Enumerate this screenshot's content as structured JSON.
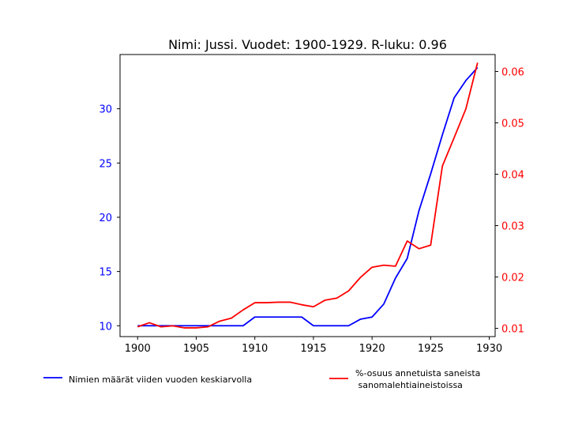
{
  "chart_data": {
    "type": "line",
    "title": "Nimi: Jussi. Vuodet: 1900-1929. R-luku: 0.96",
    "xlabel": "",
    "ylabel": "",
    "x": [
      1900,
      1901,
      1902,
      1903,
      1904,
      1905,
      1906,
      1907,
      1908,
      1909,
      1910,
      1911,
      1912,
      1913,
      1914,
      1915,
      1916,
      1917,
      1918,
      1919,
      1920,
      1921,
      1922,
      1923,
      1924,
      1925,
      1926,
      1927,
      1928,
      1929
    ],
    "xlim": [
      1898.5,
      1930.5
    ],
    "xticks": [
      "1900",
      "1905",
      "1910",
      "1915",
      "1920",
      "1925",
      "1930"
    ],
    "series": [
      {
        "name": "Nimien määrät viiden vuoden keskiarvolla",
        "axis": "left",
        "color": "#0000ff",
        "values": [
          10,
          10,
          10,
          10,
          10,
          10,
          10,
          10,
          10,
          10,
          10.8,
          10.8,
          10.8,
          10.8,
          10.8,
          10,
          10,
          10,
          10,
          10.6,
          10.8,
          12,
          14.4,
          16.2,
          20.6,
          24,
          27.6,
          31,
          32.6,
          33.8
        ]
      },
      {
        "name": "%-osuus annetuista saneista\n sanomalehtiaineistoissa",
        "axis": "right",
        "color": "#ff0000",
        "values": [
          0.0103,
          0.0111,
          0.0103,
          0.0105,
          0.0101,
          0.0101,
          0.0103,
          0.0114,
          0.012,
          0.0136,
          0.015,
          0.015,
          0.0151,
          0.0151,
          0.0146,
          0.0142,
          0.0155,
          0.0159,
          0.0173,
          0.0199,
          0.0219,
          0.0223,
          0.0221,
          0.027,
          0.0255,
          0.0262,
          0.0416,
          0.0471,
          0.0527,
          0.0617
        ]
      }
    ],
    "y_left": {
      "lim": [
        9.0,
        35.0
      ],
      "ticks": [
        "10",
        "15",
        "20",
        "25",
        "30"
      ],
      "color": "#0000ff"
    },
    "y_right": {
      "lim": [
        0.0084,
        0.0633
      ],
      "ticks": [
        "0.01",
        "0.02",
        "0.03",
        "0.04",
        "0.05",
        "0.06"
      ],
      "color": "#ff0000"
    },
    "grid": false,
    "legend": "below"
  }
}
